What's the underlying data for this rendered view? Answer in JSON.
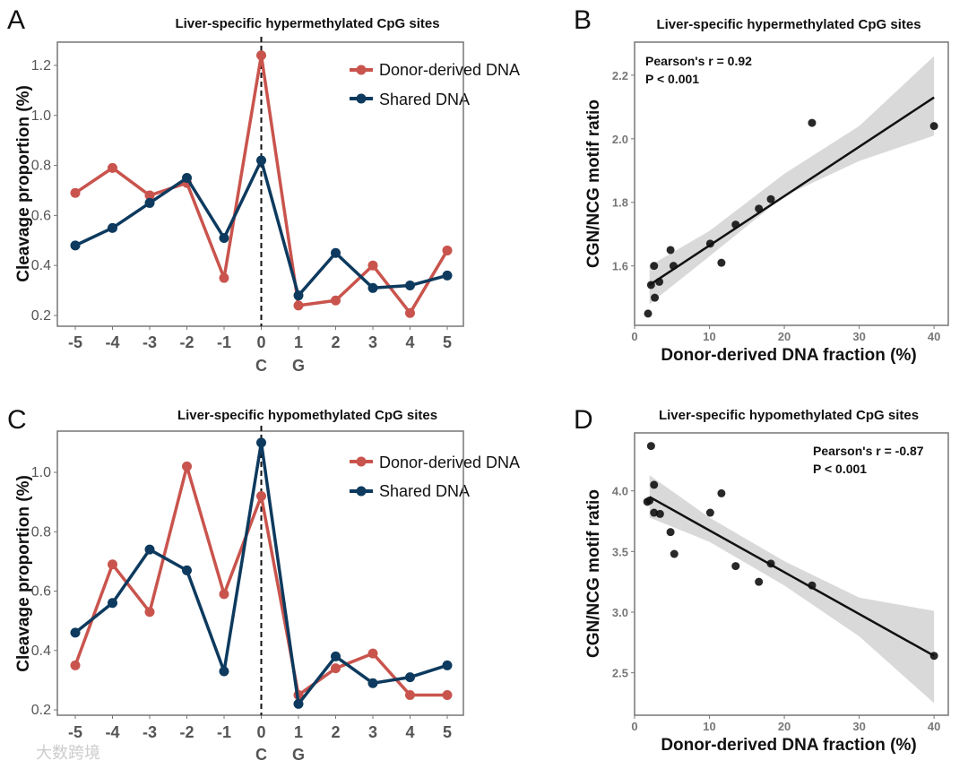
{
  "panels": {
    "A": {
      "label": "A",
      "title": "Liver-specific hypermethylated CpG sites"
    },
    "B": {
      "label": "B",
      "title": "Liver-specific hypermethylated CpG sites"
    },
    "C": {
      "label": "C",
      "title": "Liver-specific hypomethylated CpG sites"
    },
    "D": {
      "label": "D",
      "title": "Liver-specific hypomethylated CpG sites"
    }
  },
  "watermark": "大数跨境",
  "colors": {
    "donor": "#c9544d",
    "shared": "#0d3a5e",
    "band": "#d9d9d9",
    "point": "#111111"
  },
  "chart_data": [
    {
      "id": "A",
      "type": "line",
      "title": "Liver-specific hypermethylated CpG sites",
      "xlabel": "",
      "ylabel": "Cleavage proportion (%)",
      "x": [
        -5,
        -4,
        -3,
        -2,
        -1,
        0,
        1,
        2,
        3,
        4,
        5
      ],
      "x_tick_labels": [
        "-5",
        "-4",
        "-3",
        "-2",
        "-1",
        "0",
        "1",
        "2",
        "3",
        "4",
        "5"
      ],
      "x_sub_labels": {
        "0": "C",
        "1": "G"
      },
      "ylim": [
        0.157,
        1.293
      ],
      "y_ticks": [
        0.2,
        0.4,
        0.6,
        0.8,
        1.0,
        1.2
      ],
      "y_tick_labels": [
        "0.2",
        "0.4",
        "0.6",
        "0.8",
        "1.0",
        "1.2"
      ],
      "vline_x": 0,
      "legend": "top-right",
      "series": [
        {
          "name": "Donor-derived DNA",
          "color_key": "donor",
          "values": [
            0.69,
            0.79,
            0.68,
            0.73,
            0.35,
            1.24,
            0.24,
            0.26,
            0.4,
            0.21,
            0.46
          ]
        },
        {
          "name": "Shared DNA",
          "color_key": "shared",
          "values": [
            0.48,
            0.55,
            0.65,
            0.75,
            0.51,
            0.82,
            0.28,
            0.45,
            0.31,
            0.32,
            0.36
          ]
        }
      ]
    },
    {
      "id": "B",
      "type": "scatter",
      "title": "Liver-specific hypermethylated CpG sites",
      "xlabel": "Donor-derived DNA fraction (%)",
      "ylabel": "CGN/NCG motif ratio",
      "xlim": [
        0,
        41.9
      ],
      "ylim": [
        1.413,
        2.304
      ],
      "x_ticks": [
        0,
        10,
        20,
        30,
        40
      ],
      "x_tick_labels": [
        "0",
        "10",
        "20",
        "30",
        "40"
      ],
      "y_ticks": [
        1.6,
        1.8,
        2.0,
        2.2
      ],
      "y_tick_labels": [
        "1.6",
        "1.8",
        "2.0",
        "2.2"
      ],
      "annotation": [
        "Pearson's r = 0.92",
        "P < 0.001"
      ],
      "points": [
        [
          1.8,
          1.45
        ],
        [
          2.2,
          1.54
        ],
        [
          2.6,
          1.6
        ],
        [
          2.7,
          1.5
        ],
        [
          3.3,
          1.55
        ],
        [
          4.8,
          1.65
        ],
        [
          5.2,
          1.6
        ],
        [
          10.1,
          1.67
        ],
        [
          11.6,
          1.61
        ],
        [
          13.5,
          1.73
        ],
        [
          16.6,
          1.78
        ],
        [
          18.2,
          1.81
        ],
        [
          23.7,
          2.05
        ],
        [
          40.0,
          2.04
        ]
      ],
      "fit": {
        "x": [
          2,
          40
        ],
        "y": [
          1.54,
          2.13
        ]
      },
      "ci": {
        "x": [
          2,
          10,
          20,
          30,
          40
        ],
        "lower": [
          1.48,
          1.63,
          1.82,
          1.93,
          2.01
        ],
        "upper": [
          1.6,
          1.71,
          1.89,
          2.04,
          2.26
        ]
      }
    },
    {
      "id": "C",
      "type": "line",
      "title": "Liver-specific hypomethylated CpG sites",
      "xlabel": "",
      "ylabel": "Cleavage proportion (%)",
      "x": [
        -5,
        -4,
        -3,
        -2,
        -1,
        0,
        1,
        2,
        3,
        4,
        5
      ],
      "x_tick_labels": [
        "-5",
        "-4",
        "-3",
        "-2",
        "-1",
        "0",
        "1",
        "2",
        "3",
        "4",
        "5"
      ],
      "x_sub_labels": {
        "0": "C",
        "1": "G"
      },
      "ylim": [
        0.182,
        1.139
      ],
      "y_ticks": [
        0.2,
        0.4,
        0.6,
        0.8,
        1.0
      ],
      "y_tick_labels": [
        "0.2",
        "0.4",
        "0.6",
        "0.8",
        "1.0"
      ],
      "vline_x": 0,
      "legend": "top-right",
      "series": [
        {
          "name": "Donor-derived DNA",
          "color_key": "donor",
          "values": [
            0.35,
            0.69,
            0.53,
            1.02,
            0.59,
            0.92,
            0.25,
            0.34,
            0.39,
            0.25,
            0.25
          ]
        },
        {
          "name": "Shared DNA",
          "color_key": "shared",
          "values": [
            0.46,
            0.56,
            0.74,
            0.67,
            0.33,
            1.1,
            0.22,
            0.38,
            0.29,
            0.31,
            0.35
          ]
        }
      ]
    },
    {
      "id": "D",
      "type": "scatter",
      "title": "Liver-specific hypomethylated CpG sites",
      "xlabel": "Donor-derived DNA fraction (%)",
      "ylabel": "CGN/NCG motif ratio",
      "xlim": [
        0,
        41.9
      ],
      "ylim": [
        2.15,
        4.478
      ],
      "x_ticks": [
        0,
        10,
        20,
        30,
        40
      ],
      "x_tick_labels": [
        "0",
        "10",
        "20",
        "30",
        "40"
      ],
      "y_ticks": [
        2.5,
        3.0,
        3.5,
        4.0
      ],
      "y_tick_labels": [
        "2.5",
        "3.0",
        "3.5",
        "4.0"
      ],
      "annotation": [
        "Pearson's r = -0.87",
        "P < 0.001"
      ],
      "points": [
        [
          2.2,
          4.37
        ],
        [
          2.6,
          4.05
        ],
        [
          1.7,
          3.91
        ],
        [
          2.0,
          3.92
        ],
        [
          2.6,
          3.82
        ],
        [
          3.4,
          3.81
        ],
        [
          4.8,
          3.66
        ],
        [
          5.3,
          3.48
        ],
        [
          10.1,
          3.82
        ],
        [
          11.6,
          3.98
        ],
        [
          13.5,
          3.38
        ],
        [
          16.6,
          3.25
        ],
        [
          18.2,
          3.4
        ],
        [
          23.7,
          3.22
        ],
        [
          40.0,
          2.64
        ]
      ],
      "fit": {
        "x": [
          2,
          40
        ],
        "y": [
          3.95,
          2.64
        ]
      },
      "ci": {
        "x": [
          2,
          10,
          20,
          30,
          40
        ],
        "lower": [
          3.78,
          3.58,
          3.22,
          2.8,
          2.25
        ],
        "upper": [
          4.13,
          3.78,
          3.42,
          3.12,
          3.01
        ]
      }
    }
  ]
}
